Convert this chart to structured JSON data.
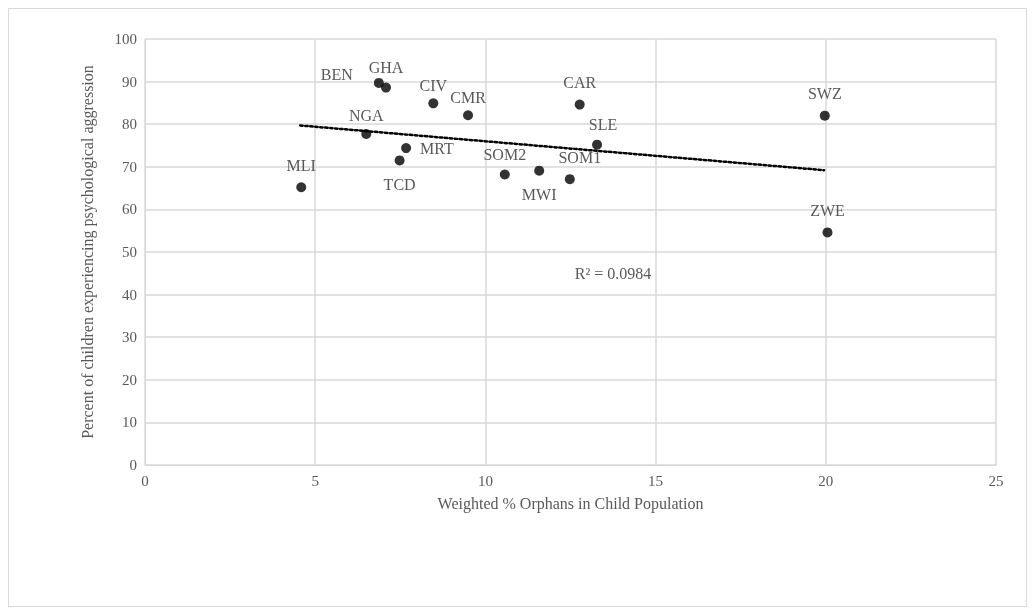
{
  "chart_data": {
    "type": "scatter",
    "xlabel": "Weighted % Orphans in Child Population",
    "ylabel": "Percent of children experiencing psychological aggression",
    "x": [
      6.87,
      7.08,
      8.47,
      9.49,
      12.77,
      6.5,
      7.67,
      7.48,
      4.59,
      10.57,
      11.58,
      12.48,
      13.28,
      19.97,
      20.05
    ],
    "series": [
      {
        "color": "#000000",
        "marker": "circle",
        "values": [
          89.7,
          88.6,
          84.9,
          82.1,
          84.6,
          77.7,
          74.4,
          71.5,
          65.2,
          68.2,
          69.1,
          67.1,
          75.2,
          82.0,
          54.6
        ]
      },
      {
        "type": "line",
        "color": "#000000",
        "marker": "none",
        "line_style": "dotted",
        "x": [
          4.56,
          19.95
        ],
        "values": [
          79.7,
          69.2
        ]
      }
    ],
    "xlim": [
      0,
      25
    ],
    "xticks": [
      0,
      5,
      10,
      15,
      20,
      25
    ],
    "ylim": [
      0,
      100
    ],
    "yticks": [
      0,
      10,
      20,
      30,
      40,
      50,
      60,
      70,
      80,
      90,
      100
    ],
    "grid": true,
    "annotations": [
      {
        "text": "BEN",
        "x": 6.87,
        "y": 89.7
      },
      {
        "text": "GHA",
        "x": 7.08,
        "y": 88.6
      },
      {
        "text": "CIV",
        "x": 8.47,
        "y": 84.9
      },
      {
        "text": "CMR",
        "x": 9.49,
        "y": 82.1
      },
      {
        "text": "CAR",
        "x": 12.77,
        "y": 84.6
      },
      {
        "text": "NGA",
        "x": 6.5,
        "y": 77.7
      },
      {
        "text": "MRT",
        "x": 7.67,
        "y": 74.4
      },
      {
        "text": "TCD",
        "x": 7.48,
        "y": 71.5
      },
      {
        "text": "MLI",
        "x": 4.59,
        "y": 65.2
      },
      {
        "text": "SOM2",
        "x": 10.57,
        "y": 68.2
      },
      {
        "text": "MWI",
        "x": 11.58,
        "y": 69.1
      },
      {
        "text": "SOM1",
        "x": 12.48,
        "y": 67.1
      },
      {
        "text": "SLE",
        "x": 13.28,
        "y": 75.2
      },
      {
        "text": "SWZ",
        "x": 19.97,
        "y": 82.0
      },
      {
        "text": "ZWE",
        "x": 20.05,
        "y": 54.6
      },
      "R² = 0.0984"
    ]
  }
}
